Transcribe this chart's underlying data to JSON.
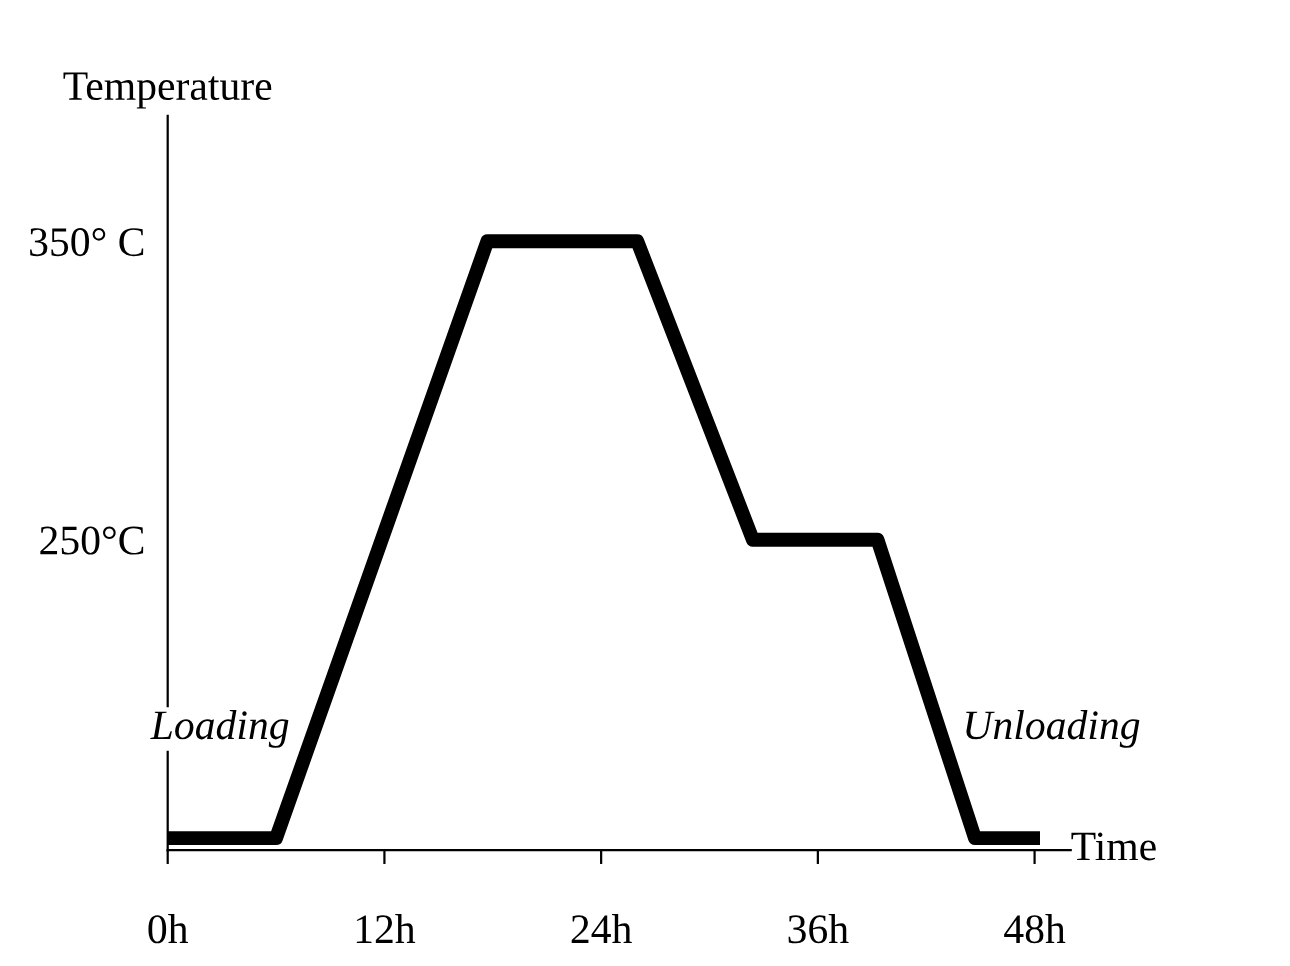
{
  "chart_data": {
    "type": "line",
    "xlabel": "Time",
    "ylabel": "Temperature",
    "series": [
      {
        "color": "#000000",
        "x": [
          0,
          6,
          17.7,
          26,
          32.4,
          39.3,
          44.7,
          48.3
        ],
        "values": [
          150,
          150,
          350,
          350,
          250,
          250,
          150,
          150
        ]
      }
    ],
    "xlim": [
      0,
      50
    ],
    "ylim": [
      146,
      392
    ],
    "xticks": [
      {
        "value": 0,
        "label": "0h"
      },
      {
        "value": 12,
        "label": "12h"
      },
      {
        "value": 24,
        "label": "24h"
      },
      {
        "value": 36,
        "label": "36h"
      },
      {
        "value": 48,
        "label": "48h"
      }
    ],
    "yticks": [
      {
        "value": 350,
        "label": "350° C"
      },
      {
        "value": 250,
        "label": "250°C"
      }
    ],
    "annotations": [
      "Loading",
      "Unloading"
    ],
    "grid": false,
    "legend": false,
    "marker": "none",
    "line_style": "solid"
  }
}
